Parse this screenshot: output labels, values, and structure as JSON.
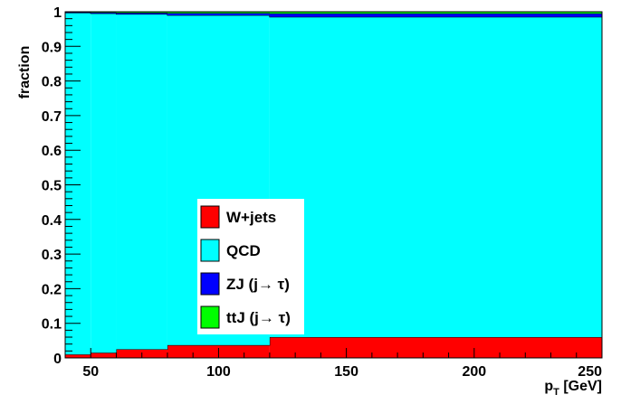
{
  "chart_data": {
    "type": "area",
    "stacked": true,
    "style": "histogram-steps",
    "xlabel": "p",
    "xlabel_sub": "T",
    "xlabel_unit": " [GeV]",
    "ylabel": "fraction",
    "xlim": [
      40,
      250
    ],
    "ylim": [
      0,
      1
    ],
    "x_ticks": [
      50,
      100,
      150,
      200,
      250
    ],
    "y_ticks": [
      0,
      0.1,
      0.2,
      0.3,
      0.4,
      0.5,
      0.6,
      0.7,
      0.8,
      0.9,
      1
    ],
    "y_tick_labels": [
      "0",
      "0.1",
      "0.2",
      "0.3",
      "0.4",
      "0.5",
      "0.6",
      "0.7",
      "0.8",
      "0.9",
      "1"
    ],
    "legend_position": "lower-left",
    "bins": [
      [
        40,
        50
      ],
      [
        50,
        60
      ],
      [
        60,
        80
      ],
      [
        80,
        120
      ],
      [
        120,
        250
      ]
    ],
    "series": [
      {
        "name": "W+jets",
        "color": "#ff0000",
        "values": [
          0.01,
          0.015,
          0.025,
          0.037,
          0.06
        ]
      },
      {
        "name": "QCD",
        "color": "#00ffff",
        "values": [
          0.987,
          0.98,
          0.968,
          0.953,
          0.925
        ]
      },
      {
        "name": "ZJ (j→ τ)",
        "color": "#0000ff",
        "values": [
          0.002,
          0.003,
          0.004,
          0.006,
          0.01
        ]
      },
      {
        "name": "ttJ (j→ τ)",
        "color": "#00ff00",
        "values": [
          0.001,
          0.002,
          0.003,
          0.004,
          0.005
        ]
      }
    ]
  }
}
